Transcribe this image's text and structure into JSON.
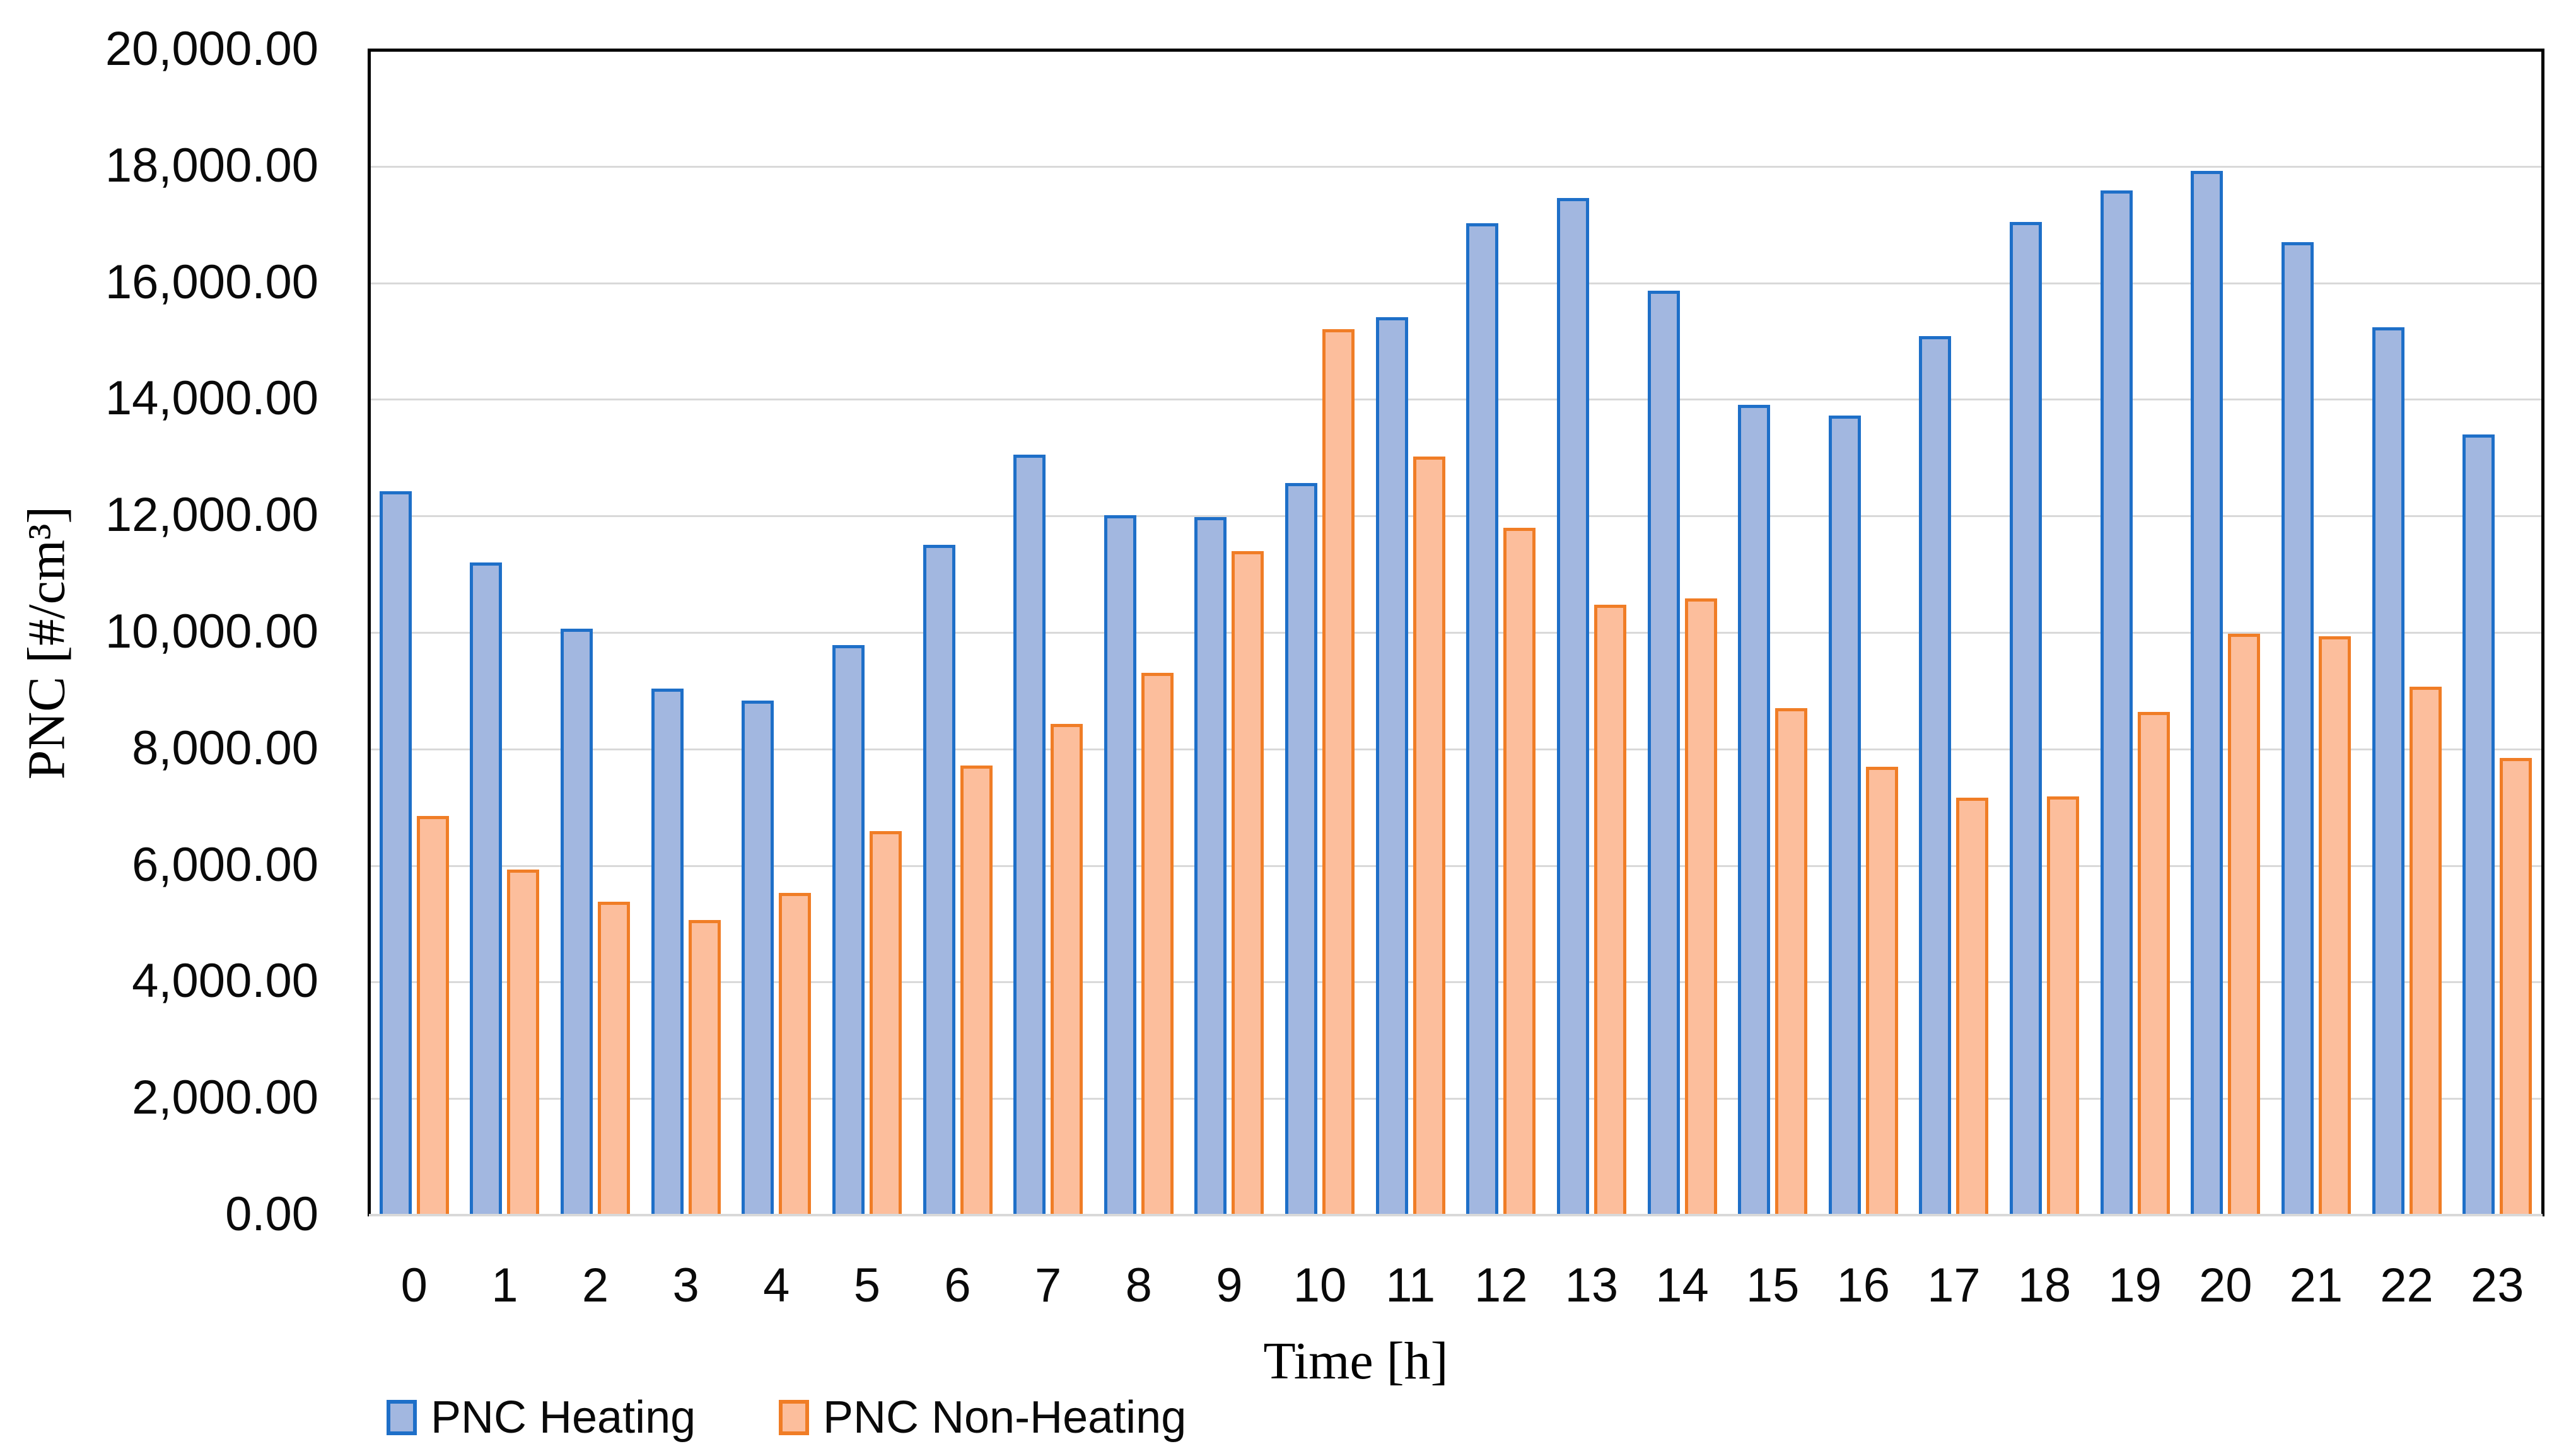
{
  "chart_data": {
    "type": "bar",
    "title": "",
    "xlabel": "Time [h]",
    "ylabel": "PNC [#/cm³]",
    "categories": [
      "0",
      "1",
      "2",
      "3",
      "4",
      "5",
      "6",
      "7",
      "8",
      "9",
      "10",
      "11",
      "12",
      "13",
      "14",
      "15",
      "16",
      "17",
      "18",
      "19",
      "20",
      "21",
      "22",
      "23"
    ],
    "series": [
      {
        "name": "PNC Heating",
        "fill": "#A2B7E0",
        "border": "#1E6FC8",
        "values": [
          12420,
          11200,
          10070,
          9040,
          8830,
          9780,
          11500,
          13050,
          12010,
          11980,
          12560,
          15410,
          17020,
          17460,
          15870,
          13910,
          13720,
          15090,
          17050,
          17590,
          17920,
          16700,
          15240,
          13400
        ]
      },
      {
        "name": "PNC Non-Heating",
        "fill": "#FCBE9C",
        "border": "#F07D26",
        "values": [
          6850,
          5930,
          5380,
          5060,
          5530,
          6590,
          7720,
          8430,
          9310,
          11400,
          15210,
          13020,
          11800,
          10480,
          10580,
          8700,
          7700,
          7160,
          7190,
          8640,
          9980,
          9940,
          9070,
          7850
        ]
      }
    ],
    "ylim": [
      0,
      20000
    ],
    "ytick_step": 2000,
    "ytick_labels": [
      "0.00",
      "2,000.00",
      "4,000.00",
      "6,000.00",
      "8,000.00",
      "10,000.00",
      "12,000.00",
      "14,000.00",
      "16,000.00",
      "18,000.00",
      "20,000.00"
    ],
    "grid": true,
    "gridline_color": "#D9D9D9",
    "legend_position": "bottom-left"
  }
}
